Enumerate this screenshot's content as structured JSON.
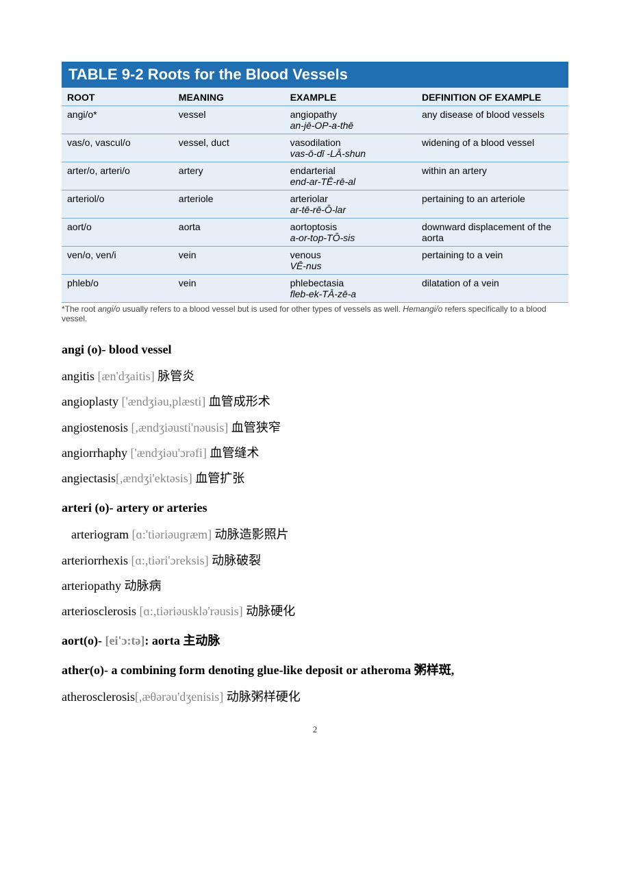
{
  "table": {
    "title": "TABLE 9-2 Roots for the Blood Vessels",
    "title_bg": "#1f6fb2",
    "title_color": "#ffffff",
    "body_bg": "#e6eff7",
    "rule_color": "#7aa7cf",
    "headers": {
      "root": "ROOT",
      "meaning": "MEANING",
      "example": "EXAMPLE",
      "definition": "DEFINITION OF EXAMPLE"
    },
    "rows": [
      {
        "root": "angi/o*",
        "meaning": "vessel",
        "example": "angiopathy",
        "pron": "an-jē-OP-a-thē",
        "definition": "any disease of blood vessels"
      },
      {
        "root": "vas/o, vascul/o",
        "meaning": "vessel, duct",
        "example": "vasodilation",
        "pron": "vas-ō-dī -LĀ-shun",
        "definition": "widening of a blood vessel"
      },
      {
        "root": "arter/o, arteri/o",
        "meaning": "artery",
        "example": "endarterial",
        "pron": "end-ar-TĒ-rē-al",
        "definition": "within an artery"
      },
      {
        "root": "arteriol/o",
        "meaning": "arteriole",
        "example": "arteriolar",
        "pron": "ar-tē-rē-Ō-lar",
        "definition": "pertaining to an arteriole"
      },
      {
        "root": "aort/o",
        "meaning": "aorta",
        "example": "aortoptosis",
        "pron": "a-or-top-TŌ-sis",
        "definition": "downward displacement of the aorta"
      },
      {
        "root": "ven/o, ven/i",
        "meaning": "vein",
        "example": "venous",
        "pron": "VĒ-nus",
        "definition": "pertaining to a vein"
      },
      {
        "root": "phleb/o",
        "meaning": "vein",
        "example": "phlebectasia",
        "pron": "fleb-ek-TĀ-zē-a",
        "definition": "dilatation of a vein"
      }
    ],
    "footnote_pre": "*The root ",
    "footnote_em1": "angi/o",
    "footnote_mid": " usually refers to a blood vessel but is used for other types of vessels as well. ",
    "footnote_em2": "Hemangi/o",
    "footnote_post": " refers specifically to a blood vessel."
  },
  "sections": [
    {
      "heading": "angi (o)- blood vessel",
      "lines": [
        {
          "term": "angitis",
          "phon": " [æn'dʒaitis] ",
          "trans": " 脉管炎"
        },
        {
          "term": "angioplasty",
          "phon": " ['ændʒiəu,plæsti] ",
          "trans": " 血管成形术"
        },
        {
          "term": "angiostenosis",
          "phon": " [,ændʒiəusti'nəusis] ",
          "trans": " 血管狭窄"
        },
        {
          "term": "angiorrhaphy",
          "phon": " ['ændʒiəu'ɔrəfi] ",
          "trans": " 血管缝术"
        },
        {
          "term": "angiectasis",
          "phon": "[,ændʒi'ektəsis] ",
          "trans": " 血管扩张"
        }
      ]
    },
    {
      "heading": "arteri (o)- artery or arteries",
      "lines": [
        {
          "term": "arteriogram",
          "phon": " [ɑ:'tiəriəuɡræm] ",
          "trans": " 动脉造影照片",
          "indent": true
        },
        {
          "term": "arteriorrhexis",
          "phon": " [ɑ:,tiəri'ɔreksis] ",
          "trans": " 动脉破裂"
        },
        {
          "term": "arteriopathy",
          "phon": "",
          "trans": " 动脉病"
        },
        {
          "term": "arteriosclerosis",
          "phon": " [ɑ:,tiəriəusklə'rəusis] ",
          "trans": " 动脉硬化"
        }
      ]
    },
    {
      "heading_pre": "aort(o)- ",
      "heading_phon": "[ei'ɔ:tə]",
      "heading_post": ": aorta   主动脉",
      "lines": []
    },
    {
      "heading": "ather(o)- a combining form denoting glue-like deposit or atheroma  粥样斑,",
      "lines": [
        {
          "term": "atherosclerosis",
          "phon": "[,æθərəu'dʒenisis] ",
          "trans": " 动脉粥样硬化"
        }
      ]
    }
  ],
  "page_number": "2"
}
